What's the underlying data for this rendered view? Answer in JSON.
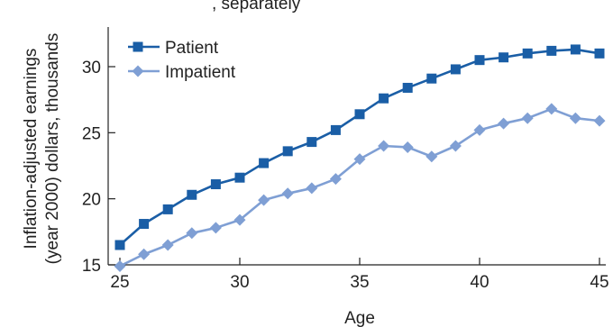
{
  "title_fragment": ", separately",
  "chart_data": {
    "type": "line",
    "xlabel": "Age",
    "ylabel_line1": "Inflation-adjusted earnings",
    "ylabel_line2": "(year 2000) dollars, thousands",
    "xlim": [
      25,
      45
    ],
    "ylim": [
      15,
      31.5
    ],
    "xticks": [
      25,
      30,
      35,
      40,
      45
    ],
    "yticks": [
      15,
      20,
      25,
      30
    ],
    "grid": false,
    "legend_position": "top-left",
    "x": [
      25,
      26,
      27,
      28,
      29,
      30,
      31,
      32,
      33,
      34,
      35,
      36,
      37,
      38,
      39,
      40,
      41,
      42,
      43,
      44,
      45
    ],
    "series": [
      {
        "name": "Patient",
        "marker": "square",
        "color": "#1a5ea6",
        "values": [
          16.5,
          18.1,
          19.2,
          20.3,
          21.1,
          21.6,
          22.7,
          23.6,
          24.3,
          25.2,
          26.4,
          27.6,
          28.4,
          29.1,
          29.8,
          30.5,
          30.7,
          31.0,
          31.2,
          31.3,
          31.0
        ]
      },
      {
        "name": "Impatient",
        "marker": "diamond",
        "color": "#7f9fd4",
        "values": [
          14.9,
          15.8,
          16.5,
          17.4,
          17.8,
          18.4,
          19.9,
          20.4,
          20.8,
          21.5,
          23.0,
          24.0,
          23.9,
          23.2,
          24.0,
          25.2,
          25.7,
          26.1,
          26.8,
          26.1,
          25.9
        ]
      }
    ]
  }
}
